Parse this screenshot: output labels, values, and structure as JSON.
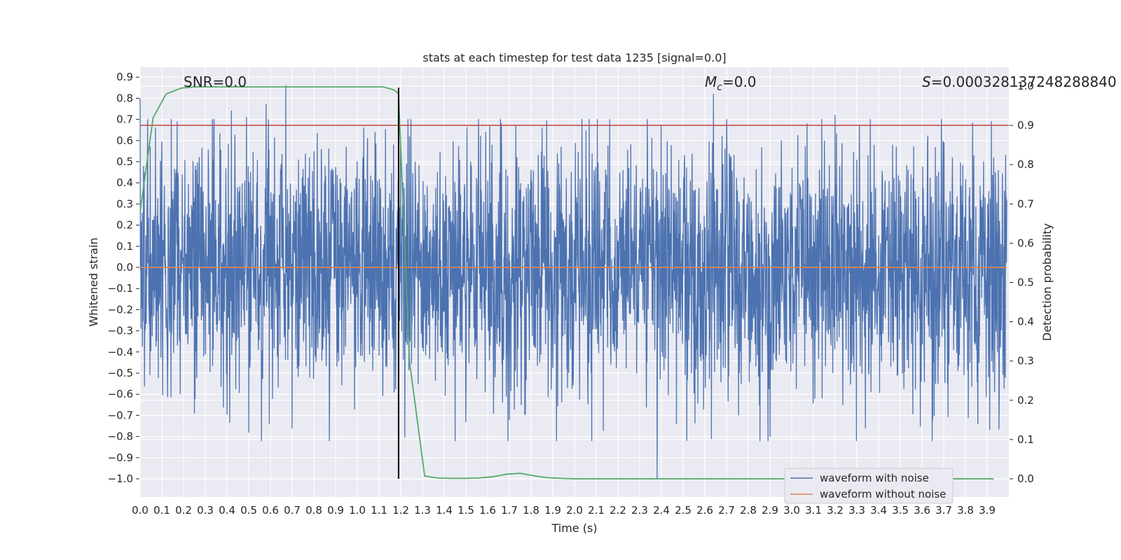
{
  "chart_data": {
    "type": "line",
    "title": "stats at each timestep for test data 1235 [signal=0.0]",
    "xlabel": "Time (s)",
    "ylabel": "Whitened strain",
    "ylabel_right": "Detection probability",
    "xlim": [
      0.0,
      3.99
    ],
    "ylim": [
      -1.09,
      0.95
    ],
    "ylim_right": [
      -0.05,
      1.0
    ],
    "x_ticks": [
      "0.0",
      "0.1",
      "0.2",
      "0.3",
      "0.4",
      "0.5",
      "0.6",
      "0.7",
      "0.8",
      "0.9",
      "1.0",
      "1.1",
      "1.2",
      "1.3",
      "1.4",
      "1.5",
      "1.6",
      "1.7",
      "1.8",
      "1.9",
      "2.0",
      "2.1",
      "2.2",
      "2.3",
      "2.4",
      "2.5",
      "2.6",
      "2.7",
      "2.8",
      "2.9",
      "3.0",
      "3.1",
      "3.2",
      "3.3",
      "3.4",
      "3.5",
      "3.6",
      "3.7",
      "3.8",
      "3.9"
    ],
    "y_ticks": [
      "−1.0",
      "−0.9",
      "−0.8",
      "−0.7",
      "−0.6",
      "−0.5",
      "−0.4",
      "−0.3",
      "−0.2",
      "−0.1",
      "0.0",
      "0.1",
      "0.2",
      "0.3",
      "0.4",
      "0.5",
      "0.6",
      "0.7",
      "0.8",
      "0.9"
    ],
    "y_ticks_right": [
      "0.0",
      "0.1",
      "0.2",
      "0.3",
      "0.4",
      "0.5",
      "0.6",
      "0.7",
      "0.8",
      "0.9",
      "1.0"
    ],
    "grid": true,
    "legend_position": "lower-right",
    "series": [
      {
        "name": "waveform with noise",
        "color": "#4c72b0",
        "kind": "noise",
        "axis": "left",
        "amplitude_envelope": [
          0.3,
          0.8
        ],
        "spikes": [
          {
            "x": 0.0,
            "y": 0.8
          },
          {
            "x": 0.07,
            "y": 0.66
          },
          {
            "x": 0.42,
            "y": 0.74
          },
          {
            "x": 0.49,
            "y": 0.71
          },
          {
            "x": 0.58,
            "y": 0.77
          },
          {
            "x": 0.67,
            "y": 0.86
          },
          {
            "x": 0.25,
            "y": -0.69
          },
          {
            "x": 0.5,
            "y": -0.78
          },
          {
            "x": 0.7,
            "y": -0.76
          },
          {
            "x": 1.17,
            "y": 0.84
          },
          {
            "x": 1.17,
            "y": -0.59
          },
          {
            "x": 1.28,
            "y": -0.55
          },
          {
            "x": 1.5,
            "y": -0.73
          },
          {
            "x": 1.7,
            "y": -0.72
          },
          {
            "x": 1.73,
            "y": 0.67
          },
          {
            "x": 1.85,
            "y": 0.66
          },
          {
            "x": 2.38,
            "y": -1.0
          },
          {
            "x": 2.64,
            "y": 0.82
          },
          {
            "x": 2.63,
            "y": -0.81
          },
          {
            "x": 2.9,
            "y": -0.8
          },
          {
            "x": 3.07,
            "y": 0.68
          },
          {
            "x": 3.2,
            "y": 0.72
          },
          {
            "x": 3.34,
            "y": -0.76
          },
          {
            "x": 3.65,
            "y": -0.72
          },
          {
            "x": 3.92,
            "y": 0.69
          }
        ]
      },
      {
        "name": "waveform without noise",
        "color": "#dd8452",
        "axis": "left",
        "x": [
          0.0,
          3.99
        ],
        "y": [
          0.0,
          0.0
        ]
      },
      {
        "name": "",
        "color": "#55a868",
        "axis": "right",
        "x": [
          0.0,
          0.06,
          0.12,
          0.19,
          0.25,
          0.31,
          0.37,
          0.44,
          0.5,
          0.56,
          0.62,
          0.69,
          0.75,
          0.81,
          0.87,
          0.94,
          1.0,
          1.06,
          1.12,
          1.17,
          1.19,
          1.24,
          1.31,
          1.37,
          1.44,
          1.5,
          1.56,
          1.62,
          1.69,
          1.75,
          1.81,
          1.87,
          1.94,
          2.0,
          2.5,
          3.0,
          3.5,
          3.93
        ],
        "y": [
          0.68,
          0.92,
          0.98,
          0.995,
          0.998,
          0.998,
          0.998,
          0.998,
          0.998,
          0.998,
          0.998,
          0.998,
          0.998,
          0.998,
          0.998,
          0.998,
          0.998,
          0.998,
          0.998,
          0.99,
          0.98,
          0.3,
          0.007,
          0.002,
          0.001,
          0.001,
          0.002,
          0.005,
          0.012,
          0.014,
          0.008,
          0.003,
          0.001,
          0.0,
          0.0,
          0.0,
          0.0,
          0.0
        ]
      }
    ],
    "lines": [
      {
        "orientation": "horizontal",
        "axis": "right",
        "value": 0.9,
        "color": "#c44e52"
      },
      {
        "orientation": "vertical",
        "value": 1.19,
        "y_from": -1.0,
        "y_to": 0.85,
        "color": "#000000"
      }
    ],
    "annotations": [
      {
        "text": "SNR=0.0"
      },
      {
        "text": "=0.0",
        "math_prefix": "M",
        "math_sub": "c"
      },
      {
        "text": "=0.000328137248288840",
        "math_prefix": "S"
      }
    ]
  }
}
